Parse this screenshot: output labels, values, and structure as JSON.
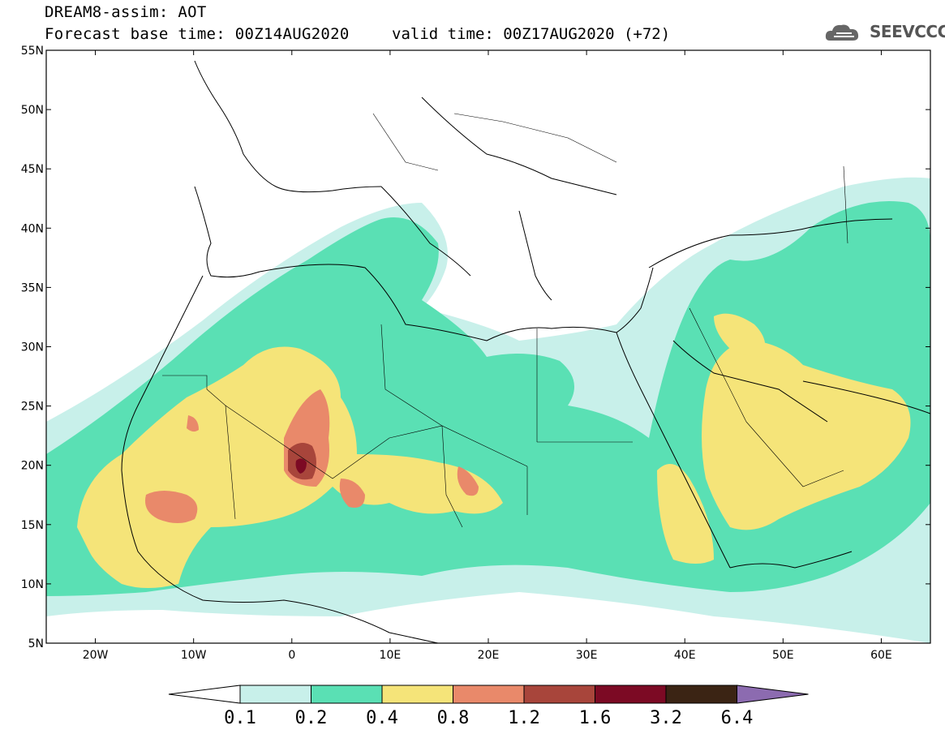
{
  "header": {
    "title": "DREAM8-assim: AOT",
    "base_time": "Forecast base time: 00Z14AUG2020",
    "valid_time": "valid time: 00Z17AUG2020 (+72)",
    "logo_text": "SEEVCCC"
  },
  "map": {
    "lon_range": [
      -25,
      65
    ],
    "lat_range": [
      5,
      55
    ],
    "lat_labels": [
      "55N",
      "50N",
      "45N",
      "40N",
      "35N",
      "30N",
      "25N",
      "20N",
      "15N",
      "10N",
      "5N"
    ],
    "lon_labels": [
      "20W",
      "10W",
      "0",
      "10E",
      "20E",
      "30E",
      "40E",
      "50E",
      "60E"
    ]
  },
  "colorbar": {
    "labels": [
      "0.1",
      "0.2",
      "0.4",
      "0.8",
      "1.2",
      "1.6",
      "3.2",
      "6.4"
    ],
    "colors": [
      "#ffffff",
      "#c8f0ea",
      "#5ae0b4",
      "#f5e479",
      "#e9896a",
      "#a8453b",
      "#7c0a24",
      "#3b2414",
      "#8c6bb0"
    ]
  },
  "legend_colors": {
    "low": "#c8f0ea",
    "mid_low": "#5ae0b4",
    "mid": "#f5e479",
    "mid_high": "#e9896a",
    "high": "#a8453b",
    "very_high": "#7c0a24"
  }
}
